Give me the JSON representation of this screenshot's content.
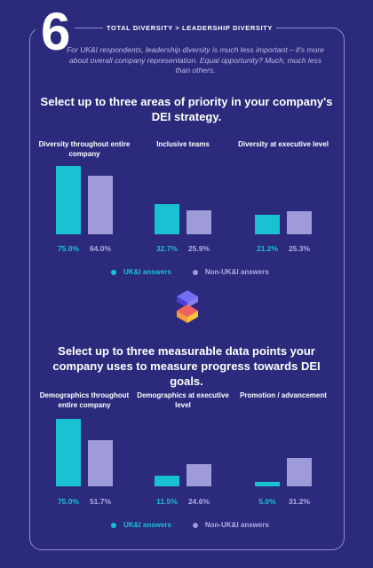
{
  "header": {
    "number": "6",
    "label": "TOTAL DIVERSITY > LEADERSHIP DIVERSITY",
    "intro": "For UK&I respondents, leadership diversity is much less important – it's more about overall company representation. Equal opportunity? Much, much less than others."
  },
  "colors": {
    "background": "#2b2a7c",
    "uk": "#19c2d3",
    "non_uk": "#9e9bd8"
  },
  "icon": "stacked-cube-icon",
  "legend": {
    "uk": "UK&I answers",
    "non_uk": "Non-UK&I answers"
  },
  "chart_data": [
    {
      "type": "bar",
      "title": "Select up to three areas of priority in your company's DEI strategy.",
      "categories": [
        "Diversity throughout entire company",
        "Inclusive teams",
        "Diversity at executive level"
      ],
      "series": [
        {
          "name": "UK&I answers",
          "values": [
            75.0,
            32.7,
            21.2
          ],
          "labels": [
            "75.0%",
            "32.7%",
            "21.2%"
          ]
        },
        {
          "name": "Non-UK&I answers",
          "values": [
            64.0,
            25.9,
            25.3
          ],
          "labels": [
            "64.0%",
            "25.9%",
            "25.3%"
          ]
        }
      ],
      "ylim": [
        0,
        75
      ],
      "legend": "bottom"
    },
    {
      "type": "bar",
      "title": "Select up to three measurable data points your company uses to measure progress towards DEI goals.",
      "categories": [
        "Demographics throughout entire company",
        "Demographics at executive level",
        "Promotion / advancement"
      ],
      "series": [
        {
          "name": "UK&I answers",
          "values": [
            75.0,
            11.5,
            5.0
          ],
          "labels": [
            "75.0%",
            "11.5%",
            "5.0%"
          ]
        },
        {
          "name": "Non-UK&I answers",
          "values": [
            51.7,
            24.6,
            31.2
          ],
          "labels": [
            "51.7%",
            "24.6%",
            "31.2%"
          ]
        }
      ],
      "ylim": [
        0,
        75
      ],
      "legend": "bottom"
    }
  ]
}
